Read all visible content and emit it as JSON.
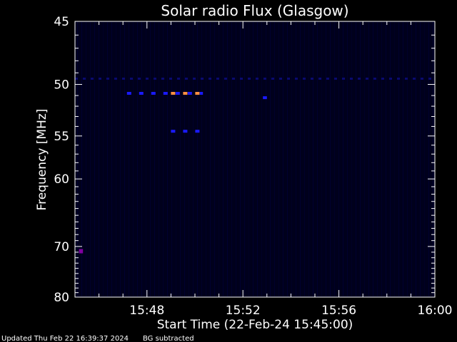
{
  "chart_data": {
    "type": "heatmap",
    "title": "Solar radio Flux (Glasgow)",
    "xlabel": "Start Time (22-Feb-24 15:45:00)",
    "ylabel": "Frequency [MHz]",
    "x_unit": "time",
    "xlim": [
      "15:45",
      "16:00"
    ],
    "ylim": [
      45,
      80
    ],
    "x_ticks": [
      "15:48",
      "15:52",
      "15:56",
      "16:00"
    ],
    "y_ticks": [
      45,
      50,
      55,
      60,
      70,
      80
    ],
    "colors": {
      "background": "#000000",
      "plot_bg": "#00001c",
      "low": "#0a0a70",
      "mid": "#1a1aff",
      "high": "#ff9040",
      "spot": "#8000a0"
    },
    "features": [
      {
        "time_start": "15:45",
        "time_end": "16:00",
        "freq": 49.5,
        "level": "low"
      },
      {
        "time_start": "15:47:10",
        "time_end": "15:50:20",
        "freq": 50.8,
        "level": "mid"
      },
      {
        "time_start": "15:49:00",
        "time_end": "15:50:15",
        "freq": 50.8,
        "level": "high"
      },
      {
        "time_start": "15:49:00",
        "time_end": "15:50:15",
        "freq": 54.5,
        "level": "mid"
      },
      {
        "time_start": "15:52:50",
        "time_end": "15:53:00",
        "freq": 51.2,
        "level": "mid"
      },
      {
        "time_start": "15:45:10",
        "time_end": "15:45:20",
        "freq": 70.7,
        "level": "spot"
      }
    ]
  },
  "footer": {
    "updated": "Updated Thu Feb 22 16:39:37 2024",
    "bg_note": "BG subtracted"
  }
}
